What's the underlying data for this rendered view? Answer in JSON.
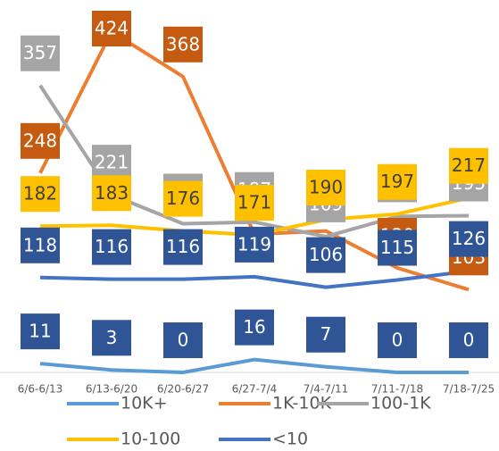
{
  "chart_data": {
    "type": "line",
    "categories": [
      "6/6-6/13",
      "6/13-6/20",
      "6/20-6/27",
      "6/27-7/4",
      "7/4-7/11",
      "7/11-7/18",
      "7/18-7/25"
    ],
    "ylim": [
      0,
      460
    ],
    "series": [
      {
        "name": "10K+",
        "color": "#5b9bd5",
        "label_color": "#2f5597",
        "values": [
          11,
          3,
          0,
          16,
          7,
          0,
          0
        ]
      },
      {
        "name": "1K-10K",
        "color": "#ed7d31",
        "label_color": "#c55a11",
        "values": [
          248,
          424,
          368,
          172,
          176,
          130,
          103
        ]
      },
      {
        "name": "100-1K",
        "color": "#a5a5a5",
        "label_color": "#a5a5a5",
        "values": [
          357,
          221,
          185,
          187,
          169,
          194,
          195
        ]
      },
      {
        "name": "10-100",
        "color": "#ffc000",
        "label_color": "#ffc000",
        "values": [
          182,
          183,
          176,
          171,
          190,
          197,
          217
        ]
      },
      {
        "name": "<10",
        "color": "#4472c4",
        "label_color": "#2f5597",
        "values": [
          118,
          116,
          116,
          119,
          106,
          115,
          126
        ]
      }
    ]
  }
}
